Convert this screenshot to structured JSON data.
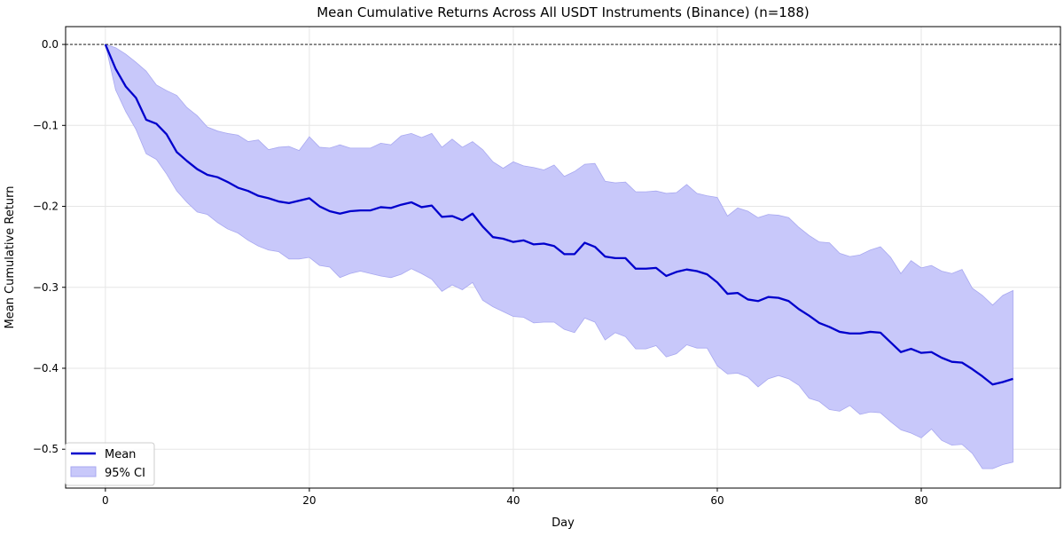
{
  "chart_data": {
    "type": "line",
    "title": "Mean Cumulative Returns Across All USDT Instruments (Binance) (n=188)",
    "xlabel": "Day",
    "ylabel": "Mean Cumulative Return",
    "xlim": [
      -3.9,
      93.65
    ],
    "ylim": [
      -0.548,
      0.022
    ],
    "xticks": [
      0,
      20,
      40,
      60,
      80
    ],
    "yticks": [
      0.0,
      -0.1,
      -0.2,
      -0.3,
      -0.4,
      -0.5
    ],
    "xtick_labels": [
      "0",
      "20",
      "40",
      "60",
      "80"
    ],
    "ytick_labels": [
      "0.0",
      "−0.1",
      "−0.2",
      "−0.3",
      "−0.4",
      "−0.5"
    ],
    "grid": true,
    "reference_line": {
      "y": 0,
      "style": "dashed",
      "color": "#000000"
    },
    "legend": {
      "placement": "lower-left",
      "entries": [
        "Mean",
        "95% CI"
      ]
    },
    "colors": {
      "mean": "#0000cc",
      "ci_fill": "#c8c8fa",
      "ci_edge": "#a8a8f0"
    },
    "series": [
      {
        "name": "Mean",
        "values": [
          0,
          -0.03,
          -0.052,
          -0.066,
          -0.093,
          -0.098,
          -0.111,
          -0.133,
          -0.144,
          -0.154,
          -0.161,
          -0.164,
          -0.17,
          -0.177,
          -0.181,
          -0.187,
          -0.19,
          -0.194,
          -0.196,
          -0.193,
          -0.19,
          -0.2,
          -0.206,
          -0.209,
          -0.206,
          -0.205,
          -0.205,
          -0.201,
          -0.202,
          -0.198,
          -0.195,
          -0.201,
          -0.199,
          -0.213,
          -0.212,
          -0.217,
          -0.209,
          -0.225,
          -0.238,
          -0.24,
          -0.244,
          -0.242,
          -0.247,
          -0.246,
          -0.249,
          -0.259,
          -0.259,
          -0.245,
          -0.25,
          -0.262,
          -0.264,
          -0.264,
          -0.277,
          -0.277,
          -0.276,
          -0.286,
          -0.281,
          -0.278,
          -0.28,
          -0.284,
          -0.294,
          -0.308,
          -0.307,
          -0.315,
          -0.317,
          -0.312,
          -0.313,
          -0.317,
          -0.327,
          -0.335,
          -0.344,
          -0.349,
          -0.355,
          -0.357,
          -0.357,
          -0.355,
          -0.356,
          -0.368,
          -0.38,
          -0.376,
          -0.381,
          -0.38,
          -0.387,
          -0.392,
          -0.393,
          -0.401,
          -0.41,
          -0.42,
          -0.417,
          -0.413
        ]
      },
      {
        "name": "95% CI",
        "upper": [
          0,
          -0.004,
          -0.012,
          -0.022,
          -0.033,
          -0.05,
          -0.057,
          -0.063,
          -0.078,
          -0.088,
          -0.102,
          -0.107,
          -0.11,
          -0.112,
          -0.12,
          -0.118,
          -0.13,
          -0.127,
          -0.126,
          -0.131,
          -0.114,
          -0.127,
          -0.128,
          -0.124,
          -0.128,
          -0.128,
          -0.128,
          -0.122,
          -0.124,
          -0.113,
          -0.11,
          -0.115,
          -0.11,
          -0.127,
          -0.117,
          -0.127,
          -0.12,
          -0.13,
          -0.145,
          -0.153,
          -0.145,
          -0.15,
          -0.152,
          -0.155,
          -0.149,
          -0.163,
          -0.157,
          -0.148,
          -0.147,
          -0.169,
          -0.171,
          -0.17,
          -0.182,
          -0.182,
          -0.181,
          -0.184,
          -0.183,
          -0.173,
          -0.184,
          -0.187,
          -0.189,
          -0.212,
          -0.202,
          -0.206,
          -0.214,
          -0.21,
          -0.211,
          -0.214,
          -0.226,
          -0.236,
          -0.244,
          -0.245,
          -0.258,
          -0.262,
          -0.26,
          -0.254,
          -0.25,
          -0.263,
          -0.283,
          -0.267,
          -0.276,
          -0.273,
          -0.28,
          -0.283,
          -0.278,
          -0.301,
          -0.31,
          -0.322,
          -0.31,
          -0.304
        ],
        "lower": [
          0,
          -0.056,
          -0.083,
          -0.105,
          -0.135,
          -0.142,
          -0.16,
          -0.181,
          -0.195,
          -0.207,
          -0.21,
          -0.22,
          -0.228,
          -0.233,
          -0.242,
          -0.249,
          -0.254,
          -0.256,
          -0.265,
          -0.265,
          -0.263,
          -0.273,
          -0.275,
          -0.288,
          -0.283,
          -0.28,
          -0.283,
          -0.286,
          -0.288,
          -0.284,
          -0.277,
          -0.283,
          -0.29,
          -0.305,
          -0.297,
          -0.303,
          -0.294,
          -0.316,
          -0.324,
          -0.33,
          -0.336,
          -0.337,
          -0.344,
          -0.343,
          -0.343,
          -0.352,
          -0.356,
          -0.338,
          -0.343,
          -0.365,
          -0.356,
          -0.361,
          -0.376,
          -0.376,
          -0.372,
          -0.386,
          -0.382,
          -0.371,
          -0.375,
          -0.375,
          -0.397,
          -0.407,
          -0.406,
          -0.411,
          -0.423,
          -0.413,
          -0.409,
          -0.413,
          -0.421,
          -0.437,
          -0.441,
          -0.451,
          -0.453,
          -0.446,
          -0.457,
          -0.454,
          -0.455,
          -0.466,
          -0.476,
          -0.48,
          -0.486,
          -0.475,
          -0.489,
          -0.495,
          -0.494,
          -0.505,
          -0.524,
          -0.524,
          -0.519,
          -0.516
        ]
      }
    ]
  }
}
